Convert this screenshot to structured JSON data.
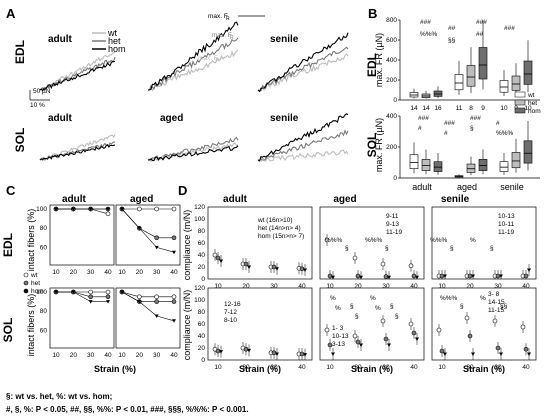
{
  "panel_labels": {
    "A": "A",
    "B": "B",
    "C": "C",
    "D": "D"
  },
  "row_labels": {
    "edl": "EDL",
    "sol": "SOL"
  },
  "group_titles": {
    "adult": "adult",
    "aged": "aged",
    "senile": "senile"
  },
  "legend": {
    "wt": "wt",
    "het": "het",
    "hom": "hom"
  },
  "series_colors": {
    "wt": "#bdbdbd",
    "het": "#7a7a7a",
    "hom": "#000000"
  },
  "panelA": {
    "scale_force": "50 µN",
    "scale_strain": "10 %",
    "annotations": [
      "max. F",
      "R",
      "max. F",
      "R",
      "max. F",
      "R"
    ]
  },
  "panelB": {
    "ylabel_edl": "max. F",
    "ylabel_edl_sub": "R",
    "ylabel_edl_unit": " (µN)",
    "ylabel_sol": "max. F",
    "ylabel_sol_sub": "R",
    "ylabel_sol_unit": " (µN)",
    "edl_ticks": [
      "0",
      "200",
      "400",
      "600",
      "800"
    ],
    "sol_ticks": [
      "0",
      "200",
      "400"
    ],
    "edl_n": [
      "14",
      "14",
      "16",
      "11",
      "8",
      "9",
      "10",
      "9",
      "10"
    ],
    "sig_edl": [
      "###",
      "##",
      "###",
      "###",
      "%%%",
      "§§",
      "##"
    ],
    "sig_sol": [
      "###",
      "###",
      "###",
      "#",
      "#",
      "#",
      "§",
      "%%%"
    ],
    "xcats": [
      "adult",
      "aged",
      "senile"
    ]
  },
  "panelC": {
    "ylabel": "intact fibers (%)",
    "yticks": [
      "100",
      "80",
      "60",
      "40",
      "20",
      "0"
    ],
    "xticks": [
      "10",
      "20",
      "30",
      "40"
    ],
    "xlabel": "Strain (%)"
  },
  "panelD": {
    "ylabel": "compliance (m/N)",
    "edl_yticks": [
      "0",
      "20",
      "40",
      "60",
      "80",
      "100",
      "120"
    ],
    "sol_yticks": [
      "0",
      "20",
      "40",
      "60",
      "80",
      "100",
      "120"
    ],
    "xticks": [
      "10",
      "20",
      "30",
      "40"
    ],
    "xlabel": "Strain (%)",
    "legend_adult_edl": [
      {
        "name": "wt",
        "n": "(16n>10)"
      },
      {
        "name": "het",
        "n": "(14n>n> 4)"
      },
      {
        "name": "hom",
        "n": "(15n>n> 7)"
      }
    ],
    "aged_edl_n": [
      "9-11",
      "9-13",
      "11-19"
    ],
    "senile_edl_n": [
      "10-13",
      "10-11",
      "11-19"
    ],
    "adult_sol_n": [
      "12-16",
      "7-12",
      "8-10"
    ],
    "aged_sol_n": [
      "1- 3",
      "10-13",
      "3-13"
    ],
    "senile_sol_n": [
      "3- 8",
      "14-15",
      "11-15"
    ],
    "sig_labels": [
      "%%%",
      "§",
      "%%%",
      "§",
      "%%%",
      "§",
      "%",
      "§",
      "%",
      "§",
      "%",
      "§",
      "%%%",
      "§",
      "%",
      "§§",
      "%",
      "§",
      "%",
      "§"
    ]
  },
  "footnotes": {
    "line1": "§: wt vs. het, %: wt vs. hom;",
    "line2": "#, §, %:  P < 0.05, ##, §§, %%: P < 0.01, ###, §§§, %%%: P < 0.001."
  },
  "chart_data": [
    {
      "type": "line",
      "title": "",
      "panel": "C-EDL",
      "x": [
        10,
        20,
        30,
        40
      ],
      "xlabel": "Strain (%)",
      "ylabel": "intact fibers (%)",
      "ylim": [
        0,
        100
      ],
      "groups": {
        "adult": {
          "wt": [
            100,
            100,
            100,
            95
          ],
          "het": [
            100,
            100,
            100,
            100
          ],
          "hom": [
            100,
            100,
            100,
            100
          ]
        },
        "aged": {
          "wt": [
            100,
            100,
            100,
            100
          ],
          "het": [
            100,
            80,
            70,
            70
          ],
          "hom": [
            100,
            80,
            60,
            55
          ]
        }
      }
    },
    {
      "type": "line",
      "panel": "C-SOL",
      "x": [
        10,
        20,
        30,
        40
      ],
      "xlabel": "Strain (%)",
      "ylabel": "intact fibers (%)",
      "ylim": [
        0,
        100
      ],
      "groups": {
        "adult": {
          "wt": [
            100,
            100,
            100,
            100
          ],
          "het": [
            100,
            100,
            95,
            95
          ],
          "hom": [
            100,
            100,
            90,
            90
          ]
        },
        "aged": {
          "wt": [
            100,
            95,
            95,
            95
          ],
          "het": [
            100,
            90,
            90,
            90
          ],
          "hom": [
            100,
            90,
            75,
            70
          ]
        }
      }
    },
    {
      "type": "scatter",
      "panel": "D-EDL",
      "x": [
        10,
        20,
        30,
        40
      ],
      "xlabel": "Strain (%)",
      "ylabel": "compliance (m/N)",
      "ylim": [
        0,
        120
      ],
      "groups": {
        "adult": {
          "wt": [
            40,
            25,
            20,
            18
          ],
          "het": [
            35,
            25,
            20,
            17
          ],
          "hom": [
            30,
            20,
            17,
            15
          ]
        },
        "aged": {
          "wt": [
            65,
            35,
            25,
            22
          ],
          "het": [
            5,
            5,
            4,
            5
          ],
          "hom": [
            3,
            3,
            3,
            3
          ]
        },
        "senile": {
          "wt": [
            5,
            5,
            5,
            5
          ],
          "het": [
            5,
            5,
            5,
            5
          ],
          "hom": [
            5,
            5,
            5,
            15
          ]
        }
      }
    },
    {
      "type": "scatter",
      "panel": "D-SOL",
      "x": [
        10,
        20,
        30,
        40
      ],
      "xlabel": "Strain (%)",
      "ylabel": "compliance (m/N)",
      "ylim": [
        0,
        120
      ],
      "groups": {
        "adult": {
          "wt": [
            18,
            20,
            12,
            10
          ],
          "het": [
            15,
            18,
            12,
            10
          ],
          "hom": [
            14,
            16,
            10,
            9
          ]
        },
        "aged": {
          "wt": [
            50,
            40,
            65,
            60
          ],
          "het": [
            25,
            30,
            35,
            45
          ],
          "hom": [
            10,
            25,
            25,
            35
          ]
        },
        "senile": {
          "wt": [
            50,
            70,
            65,
            55
          ],
          "het": [
            15,
            40,
            20,
            18
          ],
          "hom": [
            10,
            10,
            10,
            10
          ]
        }
      }
    },
    {
      "type": "box",
      "panel": "B-EDL",
      "ylabel": "max. F_R (µN)",
      "ylim": [
        0,
        800
      ],
      "categories": [
        "adult",
        "aged",
        "senile"
      ],
      "series": [
        {
          "name": "wt",
          "medians": [
            50,
            170,
            130
          ]
        },
        {
          "name": "het",
          "medians": [
            40,
            230,
            160
          ]
        },
        {
          "name": "hom",
          "medians": [
            60,
            350,
            260
          ]
        }
      ]
    },
    {
      "type": "box",
      "panel": "B-SOL",
      "ylabel": "max. F_R (µN)",
      "ylim": [
        0,
        400
      ],
      "categories": [
        "adult",
        "aged",
        "senile"
      ],
      "series": [
        {
          "name": "wt",
          "medians": [
            100,
            10,
            70
          ]
        },
        {
          "name": "het",
          "medians": [
            80,
            60,
            110
          ]
        },
        {
          "name": "hom",
          "medians": [
            70,
            80,
            160
          ]
        }
      ]
    }
  ]
}
